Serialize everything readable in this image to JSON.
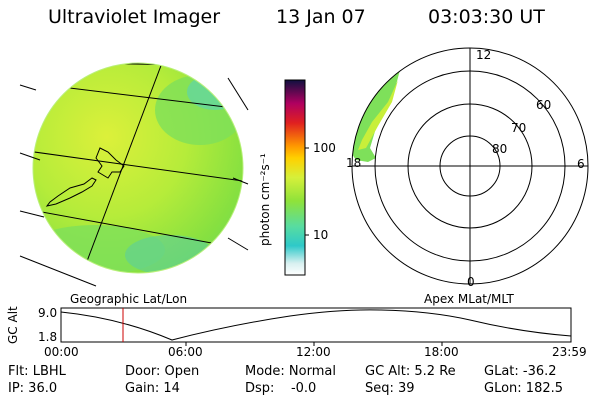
{
  "header": {
    "title": "Ultraviolet Imager",
    "date": "13 Jan 07",
    "time": "03:03:30 UT"
  },
  "colorbar": {
    "unit_label": "photon cm⁻²s⁻¹",
    "ticks": [
      "100",
      "10"
    ]
  },
  "panels": {
    "left_caption": "Geographic Lat/Lon",
    "right_caption": "Apex MLat/MLT"
  },
  "polar_plot": {
    "mlt_labels": [
      "12",
      "18",
      "6",
      "0"
    ],
    "mlat_labels": [
      "60",
      "70",
      "80"
    ]
  },
  "altitude_plot": {
    "ylabel": "GC Alt",
    "y_ticks": [
      "9.0",
      "1.8"
    ],
    "x_ticks": [
      "00:00",
      "06:00",
      "12:00",
      "18:00",
      "23:59"
    ]
  },
  "footer": {
    "flt": "Flt: LBHL",
    "door": "Door: Open",
    "mode": "Mode: Normal",
    "gc_alt": "GC Alt: 5.2 Re",
    "glat": "GLat: -36.2",
    "ip": "IP: 36.0",
    "gain": "Gain: 14",
    "dsp": "Dsp:    -0.0",
    "seq": "Seq: 39",
    "glon": "GLon: 182.5"
  },
  "colors": {
    "image_green": "#8fe23a",
    "image_yellow": "#d6f03a",
    "cyan": "#2ec9c9",
    "marker_red": "#cc0000"
  }
}
